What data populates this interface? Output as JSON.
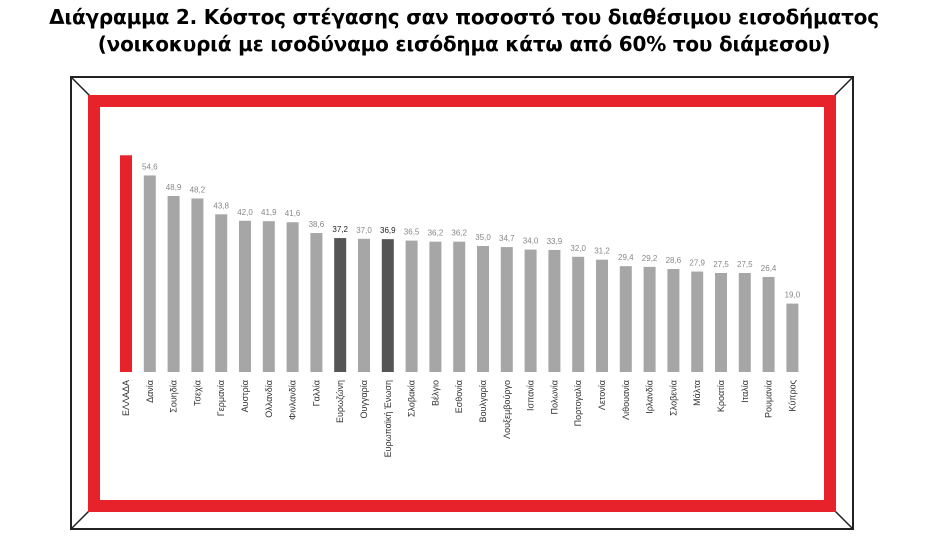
{
  "title": {
    "line1": "Διάγραμμα 2. Κόστος στέγασης σαν ποσοστό του διαθέσιμου εισοδήματος",
    "line2": "(νοικοκυριά με ισοδύναμο εισόδημα κάτω από 60% του διάμεσου)"
  },
  "colors": {
    "highlight": "#e8222a",
    "emphasis": "#555555",
    "default": "#a6a6a6",
    "frame": "#e8222a"
  },
  "chart_data": {
    "type": "bar",
    "title": "Διάγραμμα 2. Κόστος στέγασης σαν ποσοστό του διαθέσιμου εισοδήματος (νοικοκυριά με ισοδύναμο εισόδημα κάτω από 60% του διάμεσου)",
    "xlabel": "",
    "ylabel": "",
    "ylim": [
      0,
      60
    ],
    "grid": false,
    "categories": [
      "ΕΛΛΑΔΑ",
      "Δανία",
      "Σουηδία",
      "Τσεχία",
      "Γερμανία",
      "Αυστρία",
      "Ολλανδία",
      "Φινλανδία",
      "Γαλλία",
      "Ευρωζώνη",
      "Ουγγαρία",
      "Ευρωπαϊκή Ένωση",
      "Σλοβακία",
      "Βέλγιο",
      "Εσθονία",
      "Βουλγαρία",
      "Λουξεμβούργο",
      "Ισπανία",
      "Πολωνία",
      "Πορτογαλία",
      "Λετονία",
      "Λιθουανία",
      "Ιρλανδία",
      "Σλοβενία",
      "Μάλτα",
      "Κροατία",
      "Ιταλία",
      "Ρουμανία",
      "Κύπρος"
    ],
    "values": [
      null,
      54.6,
      48.9,
      48.2,
      43.8,
      42.0,
      41.9,
      41.6,
      38.6,
      37.2,
      37.0,
      36.9,
      36.5,
      36.2,
      36.2,
      35.0,
      34.7,
      34.0,
      33.9,
      32.0,
      31.2,
      29.4,
      29.2,
      28.6,
      27.9,
      27.5,
      27.5,
      26.4,
      19.0
    ],
    "value_labels": [
      "",
      "54,6",
      "48,9",
      "48,2",
      "43,8",
      "42,0",
      "41,9",
      "41,6",
      "38,6",
      "37,2",
      "37,0",
      "36,9",
      "36,5",
      "36,2",
      "36,2",
      "35,0",
      "34,7",
      "34,0",
      "33,9",
      "32,0",
      "31,2",
      "29,4",
      "29,2",
      "28,6",
      "27,9",
      "27,5",
      "27,5",
      "26,4",
      "19,0"
    ],
    "bar_colors": [
      "highlight",
      "default",
      "default",
      "default",
      "default",
      "default",
      "default",
      "default",
      "default",
      "emphasis",
      "default",
      "emphasis",
      "default",
      "default",
      "default",
      "default",
      "default",
      "default",
      "default",
      "default",
      "default",
      "default",
      "default",
      "default",
      "default",
      "default",
      "default",
      "default",
      "default"
    ],
    "highlight_value_estimate": 60.2
  }
}
